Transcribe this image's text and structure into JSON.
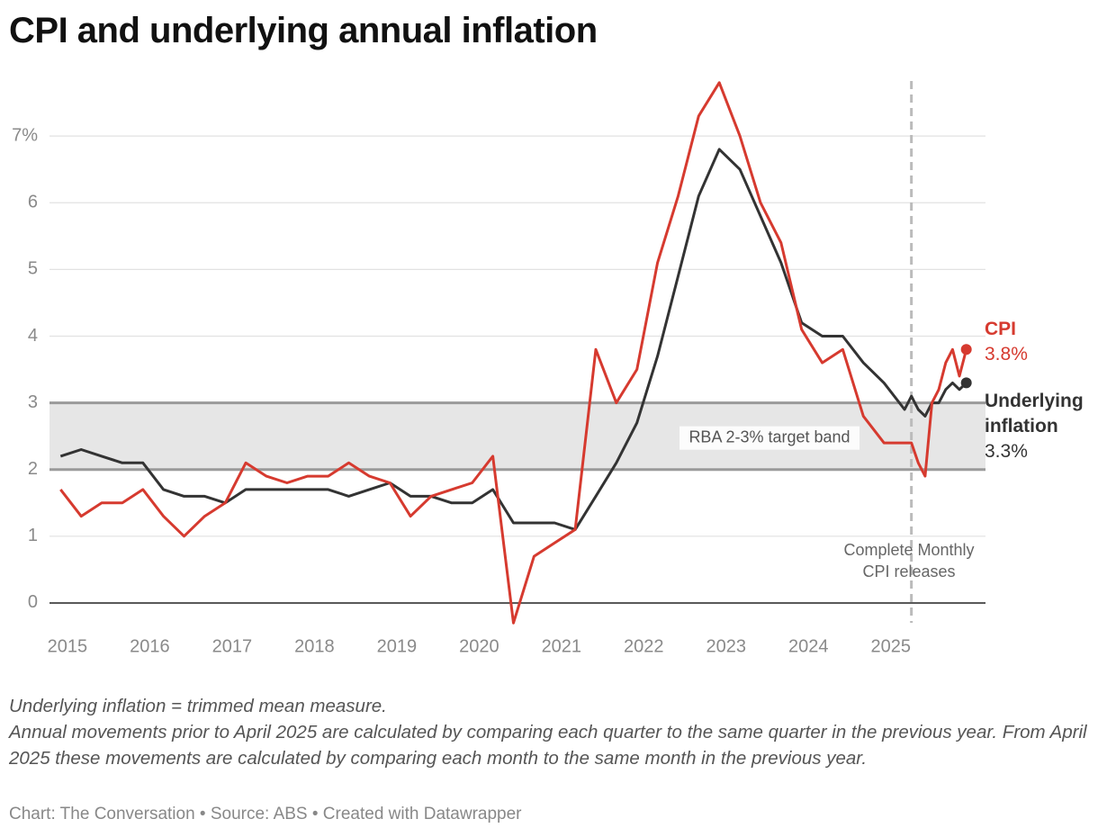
{
  "chart_data": {
    "type": "line",
    "title": "CPI and underlying annual inflation",
    "x": [
      2014.917,
      2015.167,
      2015.417,
      2015.667,
      2015.917,
      2016.167,
      2016.417,
      2016.667,
      2016.917,
      2017.167,
      2017.417,
      2017.667,
      2017.917,
      2018.167,
      2018.417,
      2018.667,
      2018.917,
      2019.167,
      2019.417,
      2019.667,
      2019.917,
      2020.167,
      2020.417,
      2020.667,
      2020.917,
      2021.167,
      2021.417,
      2021.667,
      2021.917,
      2022.167,
      2022.417,
      2022.667,
      2022.917,
      2023.167,
      2023.417,
      2023.667,
      2023.917,
      2024.167,
      2024.417,
      2024.667,
      2024.917,
      2025.167,
      2025.25,
      2025.333,
      2025.417,
      2025.5,
      2025.583,
      2025.667,
      2025.75,
      2025.833,
      2025.917
    ],
    "series": [
      {
        "name": "CPI",
        "color": "#d63a2f",
        "last_label": "3.8%",
        "values": [
          1.7,
          1.3,
          1.5,
          1.5,
          1.7,
          1.3,
          1.0,
          1.3,
          1.5,
          2.1,
          1.9,
          1.8,
          1.9,
          1.9,
          2.1,
          1.9,
          1.8,
          1.3,
          1.6,
          1.7,
          1.8,
          2.2,
          -0.3,
          0.7,
          0.9,
          1.1,
          3.8,
          3.0,
          3.5,
          5.1,
          6.1,
          7.3,
          7.8,
          7.0,
          6.0,
          5.4,
          4.1,
          3.6,
          3.8,
          2.8,
          2.4,
          2.4,
          2.4,
          2.1,
          1.9,
          3.0,
          3.2,
          3.6,
          3.8,
          3.4,
          3.8
        ]
      },
      {
        "name": "Underlying inflation",
        "color": "#333333",
        "last_label": "3.3%",
        "values": [
          2.2,
          2.3,
          2.2,
          2.1,
          2.1,
          1.7,
          1.6,
          1.6,
          1.5,
          1.7,
          1.7,
          1.7,
          1.7,
          1.7,
          1.6,
          1.7,
          1.8,
          1.6,
          1.6,
          1.5,
          1.5,
          1.7,
          1.2,
          1.2,
          1.2,
          1.1,
          1.6,
          2.1,
          2.7,
          3.7,
          4.9,
          6.1,
          6.8,
          6.5,
          5.8,
          5.1,
          4.2,
          4.0,
          4.0,
          3.6,
          3.3,
          2.9,
          3.1,
          2.9,
          2.8,
          3.0,
          3.0,
          3.2,
          3.3,
          3.2,
          3.3
        ]
      }
    ],
    "xlim": [
      2014.75,
      2026.15
    ],
    "xticks": [
      2015,
      2016,
      2017,
      2018,
      2019,
      2020,
      2021,
      2022,
      2023,
      2024,
      2025
    ],
    "ylim": [
      -0.5,
      8
    ],
    "yticks": [
      0,
      1,
      2,
      3,
      4,
      5,
      6,
      {
        "value": 7,
        "label": "7%"
      }
    ],
    "grid": true,
    "band": {
      "label": "RBA 2-3% target band",
      "from": 2,
      "to": 3
    },
    "marker": {
      "x": 2025.25,
      "lines": [
        "Complete Monthly",
        "CPI releases"
      ]
    },
    "notes": [
      "Underlying inflation = trimmed mean measure.",
      "Annual movements prior to April 2025 are calculated by comparing each quarter to the same quarter in the previous year. From April 2025 these movements are calculated by comparing each month to the same month in the previous year."
    ],
    "source": "Chart: The Conversation • Source: ABS • Created with Datawrapper"
  }
}
